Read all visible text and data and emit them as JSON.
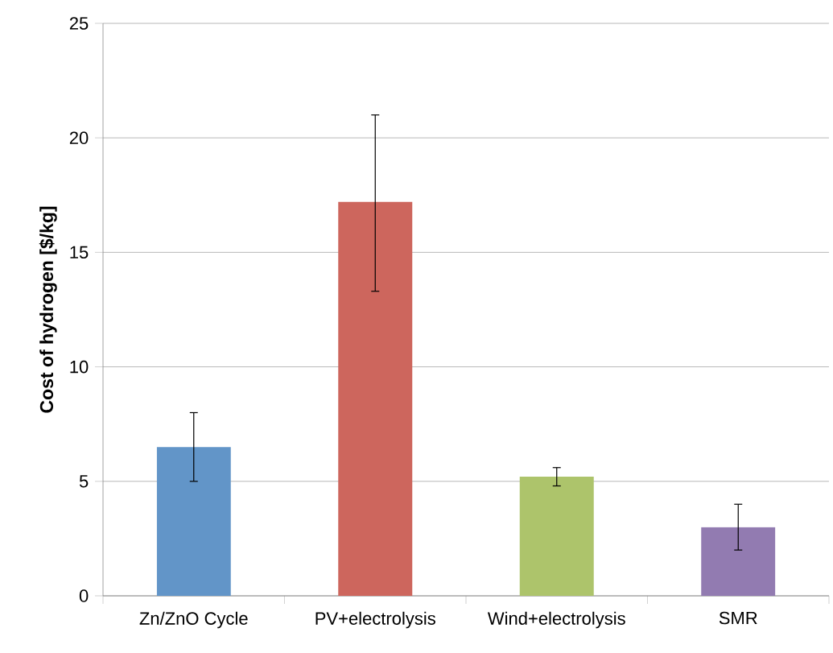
{
  "chart_data": {
    "type": "bar",
    "ylabel": "Cost of hydrogen [$/kg]",
    "categories": [
      "Zn/ZnO Cycle",
      "PV+electrolysis",
      "Wind+electrolysis",
      "SMR"
    ],
    "values": [
      6.5,
      17.2,
      5.2,
      3.0
    ],
    "errors": [
      [
        5.0,
        8.0
      ],
      [
        13.3,
        21.0
      ],
      [
        4.8,
        5.6
      ],
      [
        2.0,
        4.0
      ]
    ],
    "colors": [
      "#6295c8",
      "#cd665d",
      "#adc46b",
      "#927bb1"
    ],
    "ylim": [
      0,
      25
    ],
    "yticks": [
      0,
      5,
      10,
      15,
      20,
      25
    ],
    "grid": "y"
  }
}
